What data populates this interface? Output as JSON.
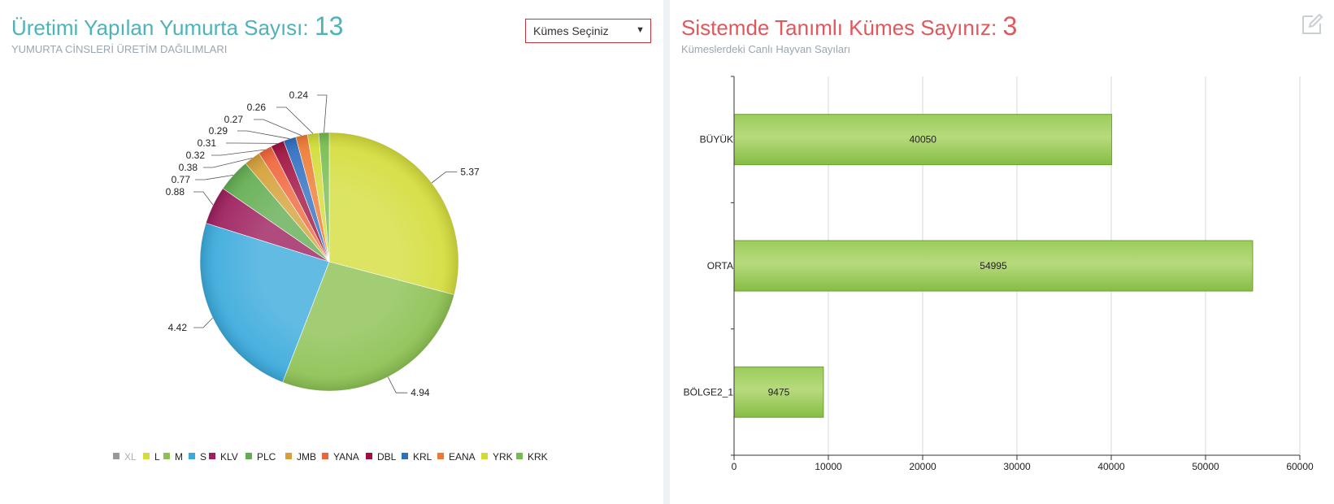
{
  "left": {
    "title_text": "Üretimi Yapılan Yumurta Sayısı:",
    "title_count": "13",
    "subtitle": "YUMURTA CİNSLERİ ÜRETİM DAĞILIMLARI",
    "select": {
      "value": "Kümes Seçiniz"
    }
  },
  "right": {
    "title_text": "Sistemde Tanımlı Kümes Sayınız:",
    "title_count": "3",
    "subtitle": "Kümeslerdeki Canlı Hayvan Sayıları",
    "edit_icon": "edit-icon"
  },
  "chart_data": [
    {
      "type": "pie",
      "labels": [
        "XL",
        "L",
        "M",
        "S",
        "KLV",
        "PLC",
        "JMB",
        "YANA",
        "DBL",
        "KRL",
        "EANA",
        "YRK",
        "KRK"
      ],
      "values": [
        0,
        5.37,
        4.94,
        4.42,
        0.88,
        0.77,
        0.38,
        0.32,
        0.31,
        0.29,
        0.27,
        0.26,
        0.24
      ],
      "data_labels": [
        "",
        "5.37",
        "4.94",
        "4.42",
        "0.88",
        "0.77",
        "0.38",
        "0.32",
        "0.31",
        "0.29",
        "0.27",
        "0.26",
        "0.24"
      ],
      "colors": [
        "#999999",
        "#d4dd3c",
        "#8cc152",
        "#3aaadc",
        "#9d1e5d",
        "#62ad51",
        "#d4a037",
        "#f0653a",
        "#a0103f",
        "#2f6ec0",
        "#ee7a31",
        "#d2dc32",
        "#76bb4e"
      ],
      "legend": {
        "placement": "bottom",
        "disabled": [
          "XL"
        ]
      }
    },
    {
      "type": "bar",
      "orientation": "horizontal",
      "categories": [
        "BÜYÜK",
        "ORTA",
        "BÖLGE2_1"
      ],
      "values": [
        40050,
        54995,
        9475
      ],
      "data_labels": [
        "40050",
        "54995",
        "9475"
      ],
      "xlim": [
        0,
        60000
      ],
      "xticks": [
        "0",
        "10000",
        "20000",
        "30000",
        "40000",
        "50000",
        "60000"
      ],
      "grid": true,
      "bar_color": "#8cc152"
    }
  ]
}
